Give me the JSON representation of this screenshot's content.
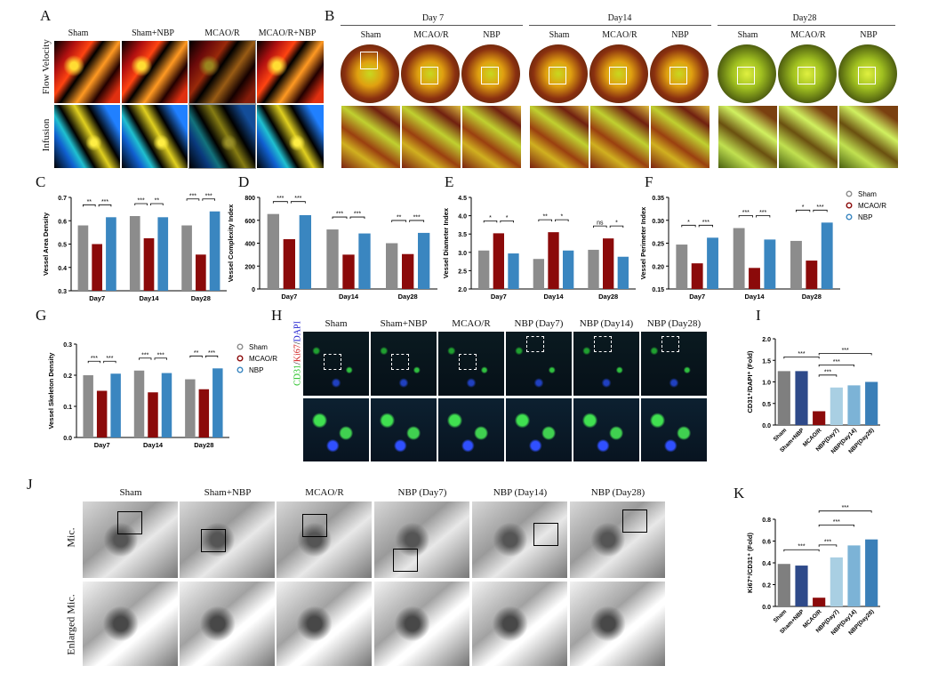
{
  "panels": {
    "A": {
      "label": "A",
      "columns": [
        "Sham",
        "Sham+NBP",
        "MCAO/R",
        "MCAO/R+NBP"
      ],
      "rows": [
        "Flow Velocity",
        "Infusion"
      ]
    },
    "B": {
      "label": "B",
      "days": [
        "Day 7",
        "Day14",
        "Day28"
      ],
      "columns": [
        "Sham",
        "MCAO/R",
        "NBP"
      ]
    },
    "C": {
      "label": "C"
    },
    "D": {
      "label": "D"
    },
    "E": {
      "label": "E"
    },
    "F": {
      "label": "F"
    },
    "G": {
      "label": "G"
    },
    "H": {
      "label": "H",
      "columns": [
        "Sham",
        "Sham+NBP",
        "MCAO/R",
        "NBP (Day7)",
        "NBP (Day14)",
        "NBP (Day28)"
      ],
      "stain": [
        "CD31",
        "/",
        "Ki67",
        "/",
        "DAPI"
      ],
      "stain_colors": [
        "#20c020",
        "#111",
        "#d02020",
        "#111",
        "#2020d0"
      ]
    },
    "I": {
      "label": "I"
    },
    "J": {
      "label": "J",
      "columns": [
        "Sham",
        "Sham+NBP",
        "MCAO/R",
        "NBP (Day7)",
        "NBP (Day14)",
        "NBP (Day28)"
      ],
      "rows": [
        "Mic.",
        "Enlarged Mic."
      ]
    },
    "K": {
      "label": "K"
    }
  },
  "legend": {
    "items": [
      "Sham",
      "MCAO/R",
      "NBP"
    ],
    "colors": [
      "#8c8c8c",
      "#8b0a0a",
      "#3a86c0"
    ]
  },
  "chart_data": [
    {
      "panel": "C",
      "type": "bar",
      "categories": [
        "Day7",
        "Day14",
        "Day28"
      ],
      "ylabel": "Vessel Area Density",
      "ylim": [
        0.3,
        0.7
      ],
      "yticks": [
        "0.3",
        "0.4",
        "0.5",
        "0.6",
        "0.7"
      ],
      "series": [
        {
          "name": "Sham",
          "values": [
            0.58,
            0.62,
            0.58
          ]
        },
        {
          "name": "MCAO/R",
          "values": [
            0.5,
            0.525,
            0.455
          ]
        },
        {
          "name": "NBP",
          "values": [
            0.615,
            0.615,
            0.64
          ]
        }
      ],
      "significance": [
        [
          "**",
          "***"
        ],
        [
          "***",
          "**"
        ],
        [
          "***",
          "***"
        ]
      ]
    },
    {
      "panel": "D",
      "type": "bar",
      "categories": [
        "Day7",
        "Day14",
        "Day28"
      ],
      "ylabel": "Vessel Complexity Index",
      "ylim": [
        0,
        800
      ],
      "yticks": [
        "0",
        "200",
        "400",
        "600",
        "800"
      ],
      "series": [
        {
          "name": "Sham",
          "values": [
            655,
            520,
            400
          ]
        },
        {
          "name": "MCAO/R",
          "values": [
            435,
            300,
            305
          ]
        },
        {
          "name": "NBP",
          "values": [
            645,
            485,
            490
          ]
        }
      ],
      "significance": [
        [
          "***",
          "***"
        ],
        [
          "***",
          "***"
        ],
        [
          "**",
          "***"
        ]
      ]
    },
    {
      "panel": "E",
      "type": "bar",
      "categories": [
        "Day7",
        "Day14",
        "Day28"
      ],
      "ylabel": "Vessel Diameter Index",
      "ylim": [
        2.0,
        4.5
      ],
      "yticks": [
        "2.0",
        "2.5",
        "3.0",
        "3.5",
        "4.0",
        "4.5"
      ],
      "series": [
        {
          "name": "Sham",
          "values": [
            3.05,
            2.82,
            3.07
          ]
        },
        {
          "name": "MCAO/R",
          "values": [
            3.52,
            3.55,
            3.38
          ]
        },
        {
          "name": "NBP",
          "values": [
            2.97,
            3.05,
            2.88
          ]
        }
      ],
      "significance": [
        [
          "*",
          "*"
        ],
        [
          "**",
          "*"
        ],
        [
          "ns",
          "*"
        ]
      ]
    },
    {
      "panel": "F",
      "type": "bar",
      "categories": [
        "Day7",
        "Day14",
        "Day28"
      ],
      "ylabel": "Vessel Perimeter Index",
      "ylim": [
        0.15,
        0.35
      ],
      "yticks": [
        "0.15",
        "0.20",
        "0.25",
        "0.30",
        "0.35"
      ],
      "series": [
        {
          "name": "Sham",
          "values": [
            0.247,
            0.283,
            0.255
          ]
        },
        {
          "name": "MCAO/R",
          "values": [
            0.206,
            0.196,
            0.212
          ]
        },
        {
          "name": "NBP",
          "values": [
            0.262,
            0.258,
            0.295
          ]
        }
      ],
      "significance": [
        [
          "*",
          "***"
        ],
        [
          "***",
          "***"
        ],
        [
          "*",
          "***"
        ]
      ]
    },
    {
      "panel": "G",
      "type": "bar",
      "categories": [
        "Day7",
        "Day14",
        "Day28"
      ],
      "ylabel": "Vessel Skeleton Density",
      "ylim": [
        0,
        0.3
      ],
      "yticks": [
        "0.0",
        "0.1",
        "0.2",
        "0.3"
      ],
      "series": [
        {
          "name": "Sham",
          "values": [
            0.2,
            0.215,
            0.187
          ]
        },
        {
          "name": "MCAO/R",
          "values": [
            0.15,
            0.145,
            0.155
          ]
        },
        {
          "name": "NBP",
          "values": [
            0.205,
            0.207,
            0.222
          ]
        }
      ],
      "significance": [
        [
          "***",
          "***"
        ],
        [
          "***",
          "***"
        ],
        [
          "**",
          "***"
        ]
      ]
    },
    {
      "panel": "I",
      "type": "bar",
      "categories": [
        "Sham",
        "Sham+NBP",
        "MCAO/R",
        "NBP(Day7)",
        "NBP(Day14)",
        "NBP(Day28)"
      ],
      "ylabel": "CD31⁺/DAPI⁺ (Fold)",
      "ylim": [
        0,
        2.0
      ],
      "yticks": [
        "0.0",
        "0.5",
        "1.0",
        "1.5",
        "2.0"
      ],
      "values": [
        1.25,
        1.25,
        0.32,
        0.87,
        0.92,
        1.0
      ],
      "colors": [
        "#7f7f7f",
        "#2e4a8a",
        "#8b0a0a",
        "#a9cfe3",
        "#7cb3d6",
        "#3a7fb8"
      ],
      "significance": [
        "***",
        "***",
        "***",
        "***"
      ]
    },
    {
      "panel": "K",
      "type": "bar",
      "categories": [
        "Sham",
        "Sham+NBP",
        "MCAO/R",
        "NBP(Day7)",
        "NBP(Day14)",
        "NBP(Day28)"
      ],
      "ylabel": "Ki67⁺/CD31⁺ (Fold)",
      "ylim": [
        0,
        0.8
      ],
      "yticks": [
        "0.0",
        "0.2",
        "0.4",
        "0.6",
        "0.8"
      ],
      "values": [
        0.39,
        0.375,
        0.08,
        0.45,
        0.56,
        0.615
      ],
      "colors": [
        "#7f7f7f",
        "#2e4a8a",
        "#8b0a0a",
        "#a9cfe3",
        "#7cb3d6",
        "#3a7fb8"
      ],
      "significance": [
        "***",
        "***",
        "***",
        "***"
      ]
    }
  ]
}
